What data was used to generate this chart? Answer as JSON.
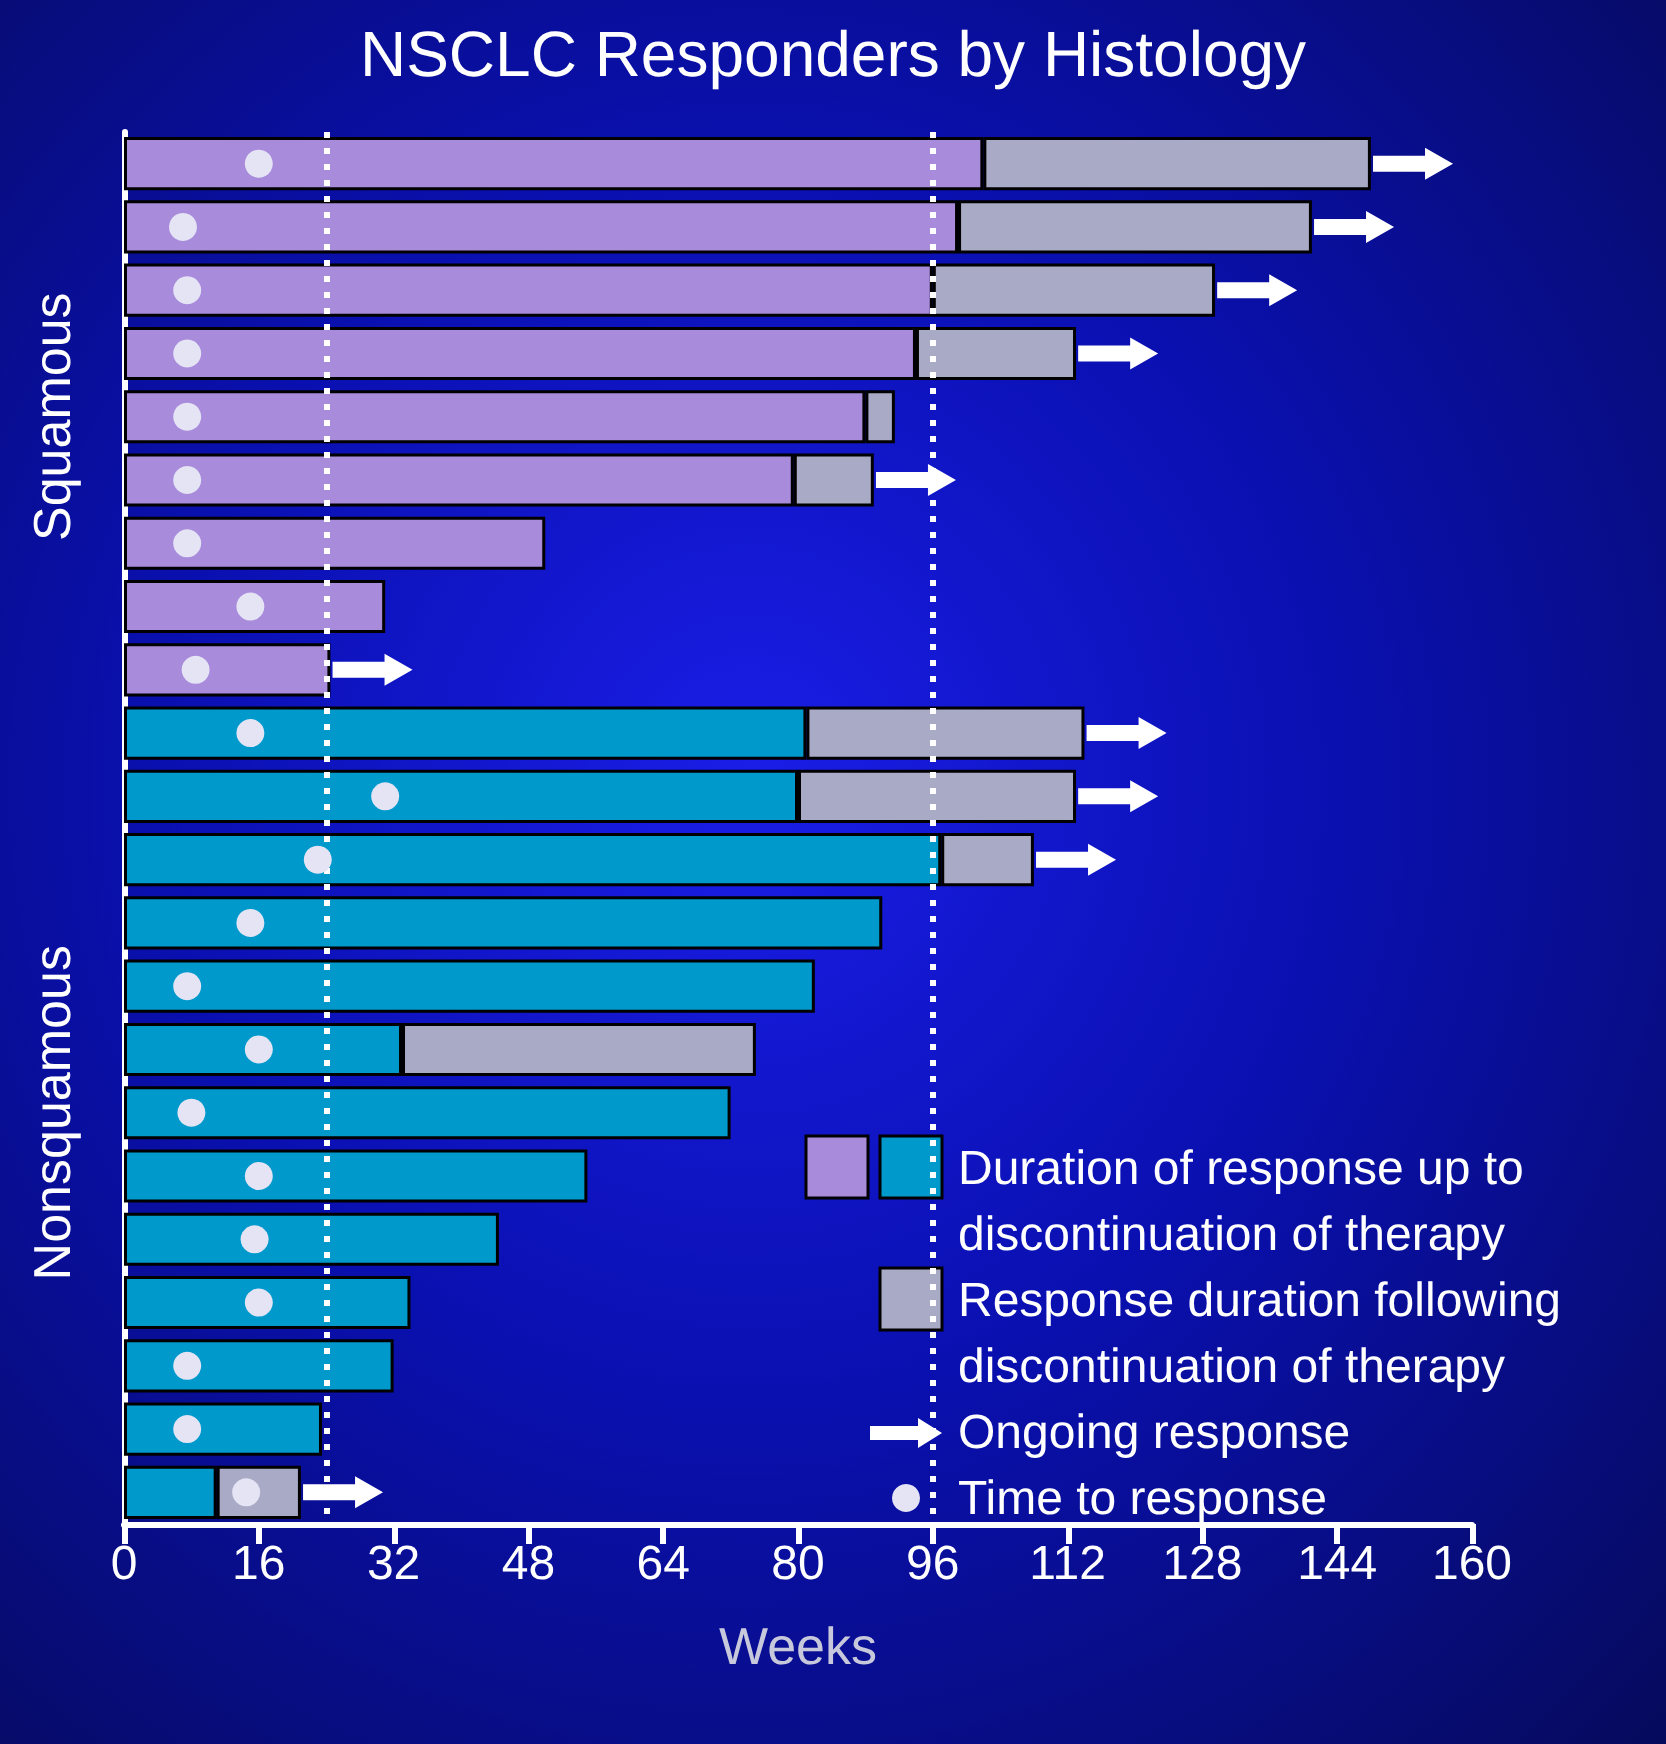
{
  "chart_data": {
    "type": "bar",
    "orientation": "horizontal",
    "stacked": true,
    "title": "NSCLC Responders by Histology",
    "xlabel": "Weeks",
    "categories": [
      null,
      null,
      null,
      null,
      null,
      null,
      null,
      null,
      null,
      null,
      null,
      null,
      null,
      null,
      null,
      null,
      null,
      null,
      null,
      null,
      null,
      null
    ],
    "xlim": [
      0,
      160
    ],
    "xticks": [
      0,
      16,
      32,
      48,
      64,
      80,
      96,
      112,
      128,
      144,
      160
    ],
    "grid": false,
    "legend": "bottom right",
    "annotations": [
      "Squamous",
      "Nonsquamous"
    ],
    "ref_lines": [
      {
        "axis": "x",
        "value": 24,
        "color": "#ffffff",
        "line_style": "dotted"
      },
      {
        "axis": "x",
        "value": 96,
        "color": "#ffffff",
        "line_style": "dotted"
      }
    ],
    "series": [
      {
        "name": "Duration of response up to discontinuation of therapy",
        "colors": [
          "#a98bdc",
          "#a98bdc",
          "#a98bdc",
          "#a98bdc",
          "#a98bdc",
          "#a98bdc",
          "#a98bdc",
          "#a98bdc",
          "#a98bdc",
          "#0099cc",
          "#0099cc",
          "#0099cc",
          "#0099cc",
          "#0099cc",
          "#0099cc",
          "#0099cc",
          "#0099cc",
          "#0099cc",
          "#0099cc",
          "#0099cc",
          "#0099cc",
          "#0099cc"
        ],
        "values": [
          102,
          99,
          96,
          94,
          88,
          79.5,
          50,
          31,
          24.5,
          81,
          80,
          97,
          90,
          82,
          33,
          72,
          55,
          44.5,
          34,
          32,
          23.5,
          11
        ]
      },
      {
        "name": "Response duration following discontinuation of therapy",
        "color": "#a9abc6",
        "values": [
          46,
          42,
          33.5,
          19,
          3.5,
          9.5,
          null,
          null,
          null,
          33,
          33,
          11,
          null,
          null,
          42,
          null,
          null,
          null,
          null,
          null,
          null,
          10
        ]
      },
      {
        "name": "Ongoing response",
        "type": "scatter",
        "color": "#ffffff",
        "values": [
          153,
          146,
          134.5,
          118,
          null,
          94,
          null,
          null,
          29.5,
          119,
          118,
          113,
          null,
          null,
          null,
          null,
          null,
          null,
          null,
          null,
          null,
          26
        ]
      },
      {
        "name": "Time to response",
        "type": "scatter",
        "marker": "circle",
        "color": "#e4e4f4",
        "values": [
          16,
          7,
          7.5,
          7.5,
          7.5,
          7.5,
          7.5,
          15,
          8.5,
          15,
          31,
          23,
          15,
          7.5,
          16,
          8,
          16,
          15.5,
          16,
          7.5,
          7.5,
          14.5
        ]
      }
    ]
  }
}
